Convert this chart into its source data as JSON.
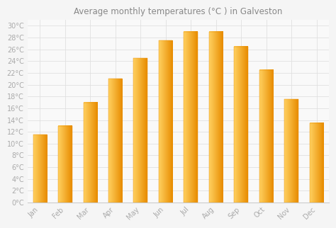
{
  "title": "Average monthly temperatures (°C ) in Galveston",
  "months": [
    "Jan",
    "Feb",
    "Mar",
    "Apr",
    "May",
    "Jun",
    "Jul",
    "Aug",
    "Sep",
    "Oct",
    "Nov",
    "Dec"
  ],
  "values": [
    11.5,
    13.0,
    17.0,
    21.0,
    24.5,
    27.5,
    29.0,
    29.0,
    26.5,
    22.5,
    17.5,
    13.5
  ],
  "bar_color_light": "#FFD060",
  "bar_color_main": "#FFA800",
  "bar_color_dark": "#E88C00",
  "background_color": "#f5f5f5",
  "plot_bg_color": "#f9f9f9",
  "grid_color": "#e0e0e0",
  "ytick_labels": [
    "0°C",
    "2°C",
    "4°C",
    "6°C",
    "8°C",
    "10°C",
    "12°C",
    "14°C",
    "16°C",
    "18°C",
    "20°C",
    "22°C",
    "24°C",
    "26°C",
    "28°C",
    "30°C"
  ],
  "ytick_values": [
    0,
    2,
    4,
    6,
    8,
    10,
    12,
    14,
    16,
    18,
    20,
    22,
    24,
    26,
    28,
    30
  ],
  "ylim": [
    0,
    31
  ],
  "title_fontsize": 8.5,
  "tick_fontsize": 7,
  "title_color": "#888888",
  "tick_color": "#aaaaaa",
  "bar_width": 0.55,
  "gradient_steps": 50
}
